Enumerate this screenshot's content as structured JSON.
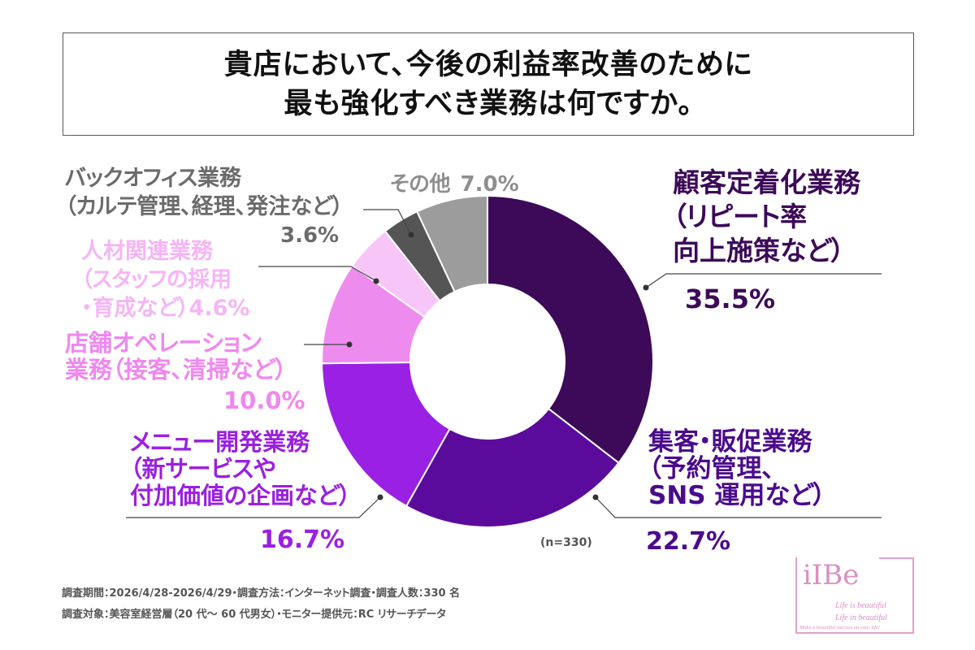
{
  "chart_data": {
    "type": "pie",
    "donut": true,
    "title_lines": [
      "貴店において、今後の利益率改善のために",
      "最も強化すべき業務は何ですか。"
    ],
    "sample_note": "(n=330)",
    "slices": [
      {
        "label_lines": [
          "顧客定着化業務",
          "（リピート率",
          "向上施策など）"
        ],
        "value": 35.5,
        "value_label": "35.5%",
        "color": "#3c0a58",
        "text_color": "#3c0a58"
      },
      {
        "label_lines": [
          "集客・販促業務",
          "（予約管理、",
          "SNS 運用など）"
        ],
        "value": 22.7,
        "value_label": "22.7%",
        "color": "#5b0b9c",
        "text_color": "#4a0b8c"
      },
      {
        "label_lines": [
          "メニュー開発業務",
          "（新サービスや",
          "付加価値の企画など）"
        ],
        "value": 16.7,
        "value_label": "16.7%",
        "color": "#9a20e4",
        "text_color": "#9a20e0"
      },
      {
        "label_lines": [
          "店舗オペレーション",
          "業務（接客、清掃など）"
        ],
        "value": 10.0,
        "value_label": "10.0%",
        "color": "#ee8bef",
        "text_color": "#ef88ef"
      },
      {
        "label_lines": [
          "人材関連業務",
          "（スタッフの採用",
          "・育成など）"
        ],
        "value": 4.6,
        "value_label": "4.6%",
        "color": "#f8c5f8",
        "text_color": "#f5b5f5"
      },
      {
        "label_lines": [
          "バックオフィス業務",
          "（カルテ管理、経理、発注など）"
        ],
        "value": 3.6,
        "value_label": "3.6%",
        "color": "#555555",
        "text_color": "#6b6b6b"
      },
      {
        "label_lines": [
          "その他"
        ],
        "value": 7.0,
        "value_label": "7.0%",
        "color": "#9c9c9c",
        "text_color": "#8e8e8e"
      }
    ]
  },
  "footer": {
    "line1": "調査期間：2026/4/28-2026/4/29・調査方法：インターネット調査・調査人数：330 名",
    "line2": "調査対象：美容室経営層（20 代～ 60 代男女）・モニター提供元：RC リサーチデータ"
  },
  "logo": {
    "mark": "iIBe",
    "tagline1": "Life is beautiful",
    "tagline2": "Life in beautiful",
    "tagline3": "Make a beautiful success on your life!"
  }
}
